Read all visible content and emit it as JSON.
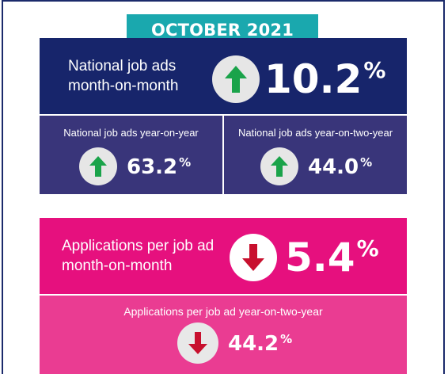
{
  "header": {
    "date_banner": "OCTOBER 2021"
  },
  "colors": {
    "teal": "#1aa8ae",
    "navy": "#17256b",
    "navy_light": "#39357a",
    "magenta": "#e6107e",
    "pink": "#ea3c92",
    "arrow_up": "#1aa34a",
    "arrow_down": "#c8102e"
  },
  "job_ads": {
    "month_on_month": {
      "label": "National job ads month-on-month",
      "value": "10.2",
      "unit": "%",
      "direction": "up",
      "icon": "arrow-up-icon"
    },
    "year_on_year": {
      "label": "National job ads year-on-year",
      "value": "63.2",
      "unit": "%",
      "direction": "up",
      "icon": "arrow-up-icon"
    },
    "year_on_two_year": {
      "label": "National job ads year-on-two-year",
      "value": "44.0",
      "unit": "%",
      "direction": "up",
      "icon": "arrow-up-icon"
    }
  },
  "applications": {
    "month_on_month": {
      "label": "Applications per job ad month-on-month",
      "value": "5.4",
      "unit": "%",
      "direction": "down",
      "icon": "arrow-down-icon"
    },
    "year_on_two_year": {
      "label": "Applications per job ad year-on-two-year",
      "value": "44.2",
      "unit": "%",
      "direction": "down",
      "icon": "arrow-down-icon"
    }
  }
}
